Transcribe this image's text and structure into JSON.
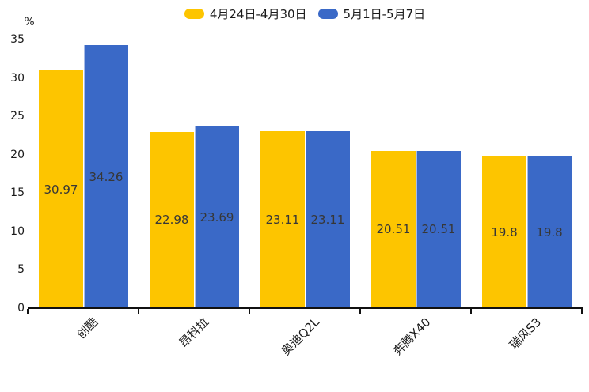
{
  "chart_data": {
    "type": "bar",
    "title": "",
    "xlabel": "",
    "ylabel": "%",
    "categories": [
      "创酷",
      "昂科拉",
      "奥迪Q2L",
      "奔腾X40",
      "瑞风S3"
    ],
    "series": [
      {
        "name": "4月24日-4月30日",
        "color": "#FDC500",
        "values": [
          30.97,
          22.98,
          23.11,
          20.51,
          19.8
        ]
      },
      {
        "name": "5月1日-5月7日",
        "color": "#3A69C7",
        "values": [
          34.26,
          23.69,
          23.11,
          20.51,
          19.8
        ]
      }
    ],
    "value_labels": [
      "30.97",
      "34.26",
      "22.98",
      "23.69",
      "23.11",
      "23.11",
      "20.51",
      "20.51",
      "19.8",
      "19.8"
    ],
    "ylim": [
      0,
      35
    ],
    "yticks": [
      0,
      5,
      10,
      15,
      20,
      25,
      30,
      35
    ],
    "grid": false,
    "legend_position": "top-center",
    "value_label_placement": "inside-center",
    "value_label_color": "#373737",
    "axis_color": "#111111",
    "text_color": "#1b1b1b",
    "background": "#FFFFFF"
  }
}
